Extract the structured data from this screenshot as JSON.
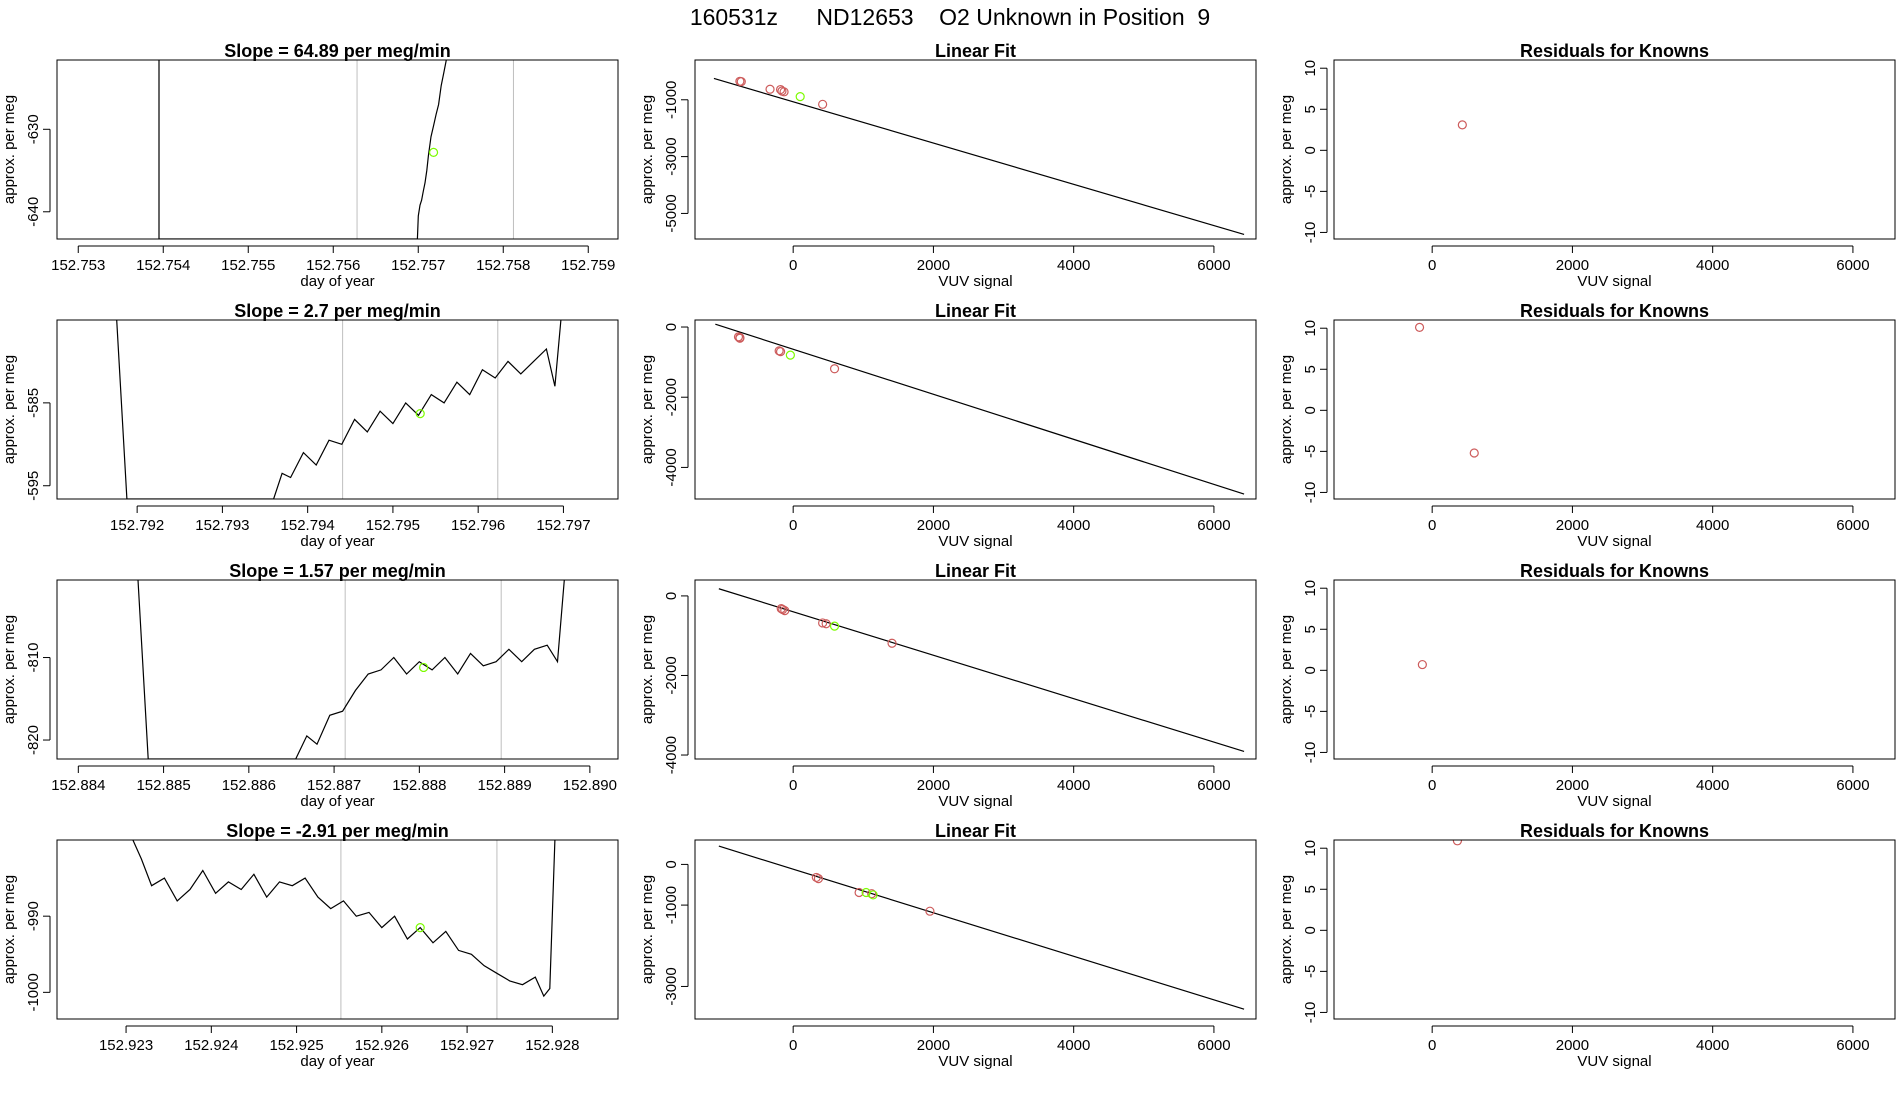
{
  "figure_title": "160531z      ND12653    O2 Unknown in Position  9",
  "chart_data": [
    {
      "type": "line",
      "panel": "time-series",
      "row": 1,
      "title": "Slope =  64.89  per meg/min",
      "xlabel": "day of year",
      "ylabel": "approx. per meg",
      "xlim": [
        152.75275,
        152.75935
      ],
      "ylim": [
        -643.3,
        -621.6
      ],
      "xticks": [
        "152.753",
        "152.754",
        "152.755",
        "152.756",
        "152.757",
        "152.758",
        "152.759"
      ],
      "yticks": [
        "-630",
        "-640"
      ],
      "vlines": [
        152.75628,
        152.75812
      ],
      "x": [
        152.75395,
        152.75395,
        152.75699,
        152.757,
        152.75702,
        152.75704,
        152.75706,
        152.75708,
        152.7571,
        152.75712,
        152.75715,
        152.75718,
        152.75721,
        152.75724,
        152.75727,
        152.7573,
        152.75733
      ],
      "y": [
        -621.6,
        -643.3,
        -643.3,
        -640.5,
        -639.2,
        -638.6,
        -637.5,
        -636.5,
        -635.0,
        -633.2,
        -630.9,
        -629.6,
        -628.2,
        -627.0,
        -624.7,
        -623.2,
        -621.6
      ],
      "point": {
        "x": 152.75718,
        "y": -632.8
      }
    },
    {
      "type": "line",
      "panel": "time-series",
      "row": 2,
      "title": "Slope =  2.7  per meg/min",
      "xlabel": "day of year",
      "ylabel": "approx. per meg",
      "xlim": [
        152.79106,
        152.79764
      ],
      "ylim": [
        -596.6,
        -575.0
      ],
      "xticks": [
        "152.792",
        "152.793",
        "152.794",
        "152.795",
        "152.796",
        "152.797"
      ],
      "yticks": [
        "-585",
        "-595"
      ],
      "vlines": [
        152.79441,
        152.79623
      ],
      "x": [
        152.79176,
        152.79188,
        152.7936,
        152.7937,
        152.7938,
        152.79395,
        152.7941,
        152.79425,
        152.7944,
        152.79455,
        152.7947,
        152.79485,
        152.795,
        152.79515,
        152.7953,
        152.79545,
        152.7956,
        152.79575,
        152.7959,
        152.79605,
        152.7962,
        152.79635,
        152.7965,
        152.79665,
        152.7968,
        152.7969,
        152.79697
      ],
      "y": [
        -575.0,
        -596.6,
        -596.6,
        -593.5,
        -594.0,
        -591.0,
        -592.5,
        -589.5,
        -590.0,
        -587.0,
        -588.5,
        -586.0,
        -587.5,
        -585.0,
        -586.5,
        -584.0,
        -585.0,
        -582.5,
        -584.0,
        -581.0,
        -582.0,
        -580.0,
        -581.5,
        -580.0,
        -578.5,
        -583.0,
        -575.0
      ],
      "point": {
        "x": 152.79532,
        "y": -586.3
      }
    },
    {
      "type": "line",
      "panel": "time-series",
      "row": 3,
      "title": "Slope =  1.57  per meg/min",
      "xlabel": "day of year",
      "ylabel": "approx. per meg",
      "xlim": [
        152.88375,
        152.89033
      ],
      "ylim": [
        -822.3,
        -800.6
      ],
      "xticks": [
        "152.884",
        "152.885",
        "152.886",
        "152.887",
        "152.888",
        "152.889",
        "152.890"
      ],
      "yticks": [
        "-810",
        "-820"
      ],
      "vlines": [
        152.88713,
        152.88896
      ],
      "x": [
        152.8847,
        152.88482,
        152.88655,
        152.88668,
        152.8868,
        152.88695,
        152.8871,
        152.88725,
        152.8874,
        152.88755,
        152.8877,
        152.88785,
        152.888,
        152.88815,
        152.8883,
        152.88845,
        152.8886,
        152.88875,
        152.8889,
        152.88905,
        152.8892,
        152.88935,
        152.8895,
        152.88962,
        152.8897
      ],
      "y": [
        -800.6,
        -822.3,
        -822.3,
        -819.5,
        -820.5,
        -817.0,
        -816.5,
        -814.0,
        -812.0,
        -811.5,
        -810.0,
        -812.0,
        -810.5,
        -811.5,
        -810.0,
        -812.0,
        -809.5,
        -811.0,
        -810.5,
        -809.0,
        -810.5,
        -809.0,
        -808.5,
        -810.5,
        -800.6
      ],
      "point": {
        "x": 152.88805,
        "y": -811.2
      }
    },
    {
      "type": "line",
      "panel": "time-series",
      "row": 4,
      "title": "Slope =  -2.91  per meg/min",
      "xlabel": "day of year",
      "ylabel": "approx. per meg",
      "xlim": [
        152.92219,
        152.92877
      ],
      "ylim": [
        -1003.5,
        -980.0
      ],
      "xticks": [
        "152.923",
        "152.924",
        "152.925",
        "152.926",
        "152.927",
        "152.928"
      ],
      "yticks": [
        "-990",
        "-1000"
      ],
      "vlines": [
        152.92552,
        152.92735
      ],
      "x": [
        152.92308,
        152.92318,
        152.9233,
        152.92345,
        152.9236,
        152.92375,
        152.9239,
        152.92405,
        152.9242,
        152.92435,
        152.9245,
        152.92465,
        152.9248,
        152.92495,
        152.9251,
        152.92525,
        152.9254,
        152.92555,
        152.9257,
        152.92585,
        152.926,
        152.92615,
        152.9263,
        152.92645,
        152.9266,
        152.92675,
        152.9269,
        152.92705,
        152.9272,
        152.92735,
        152.9275,
        152.92765,
        152.9278,
        152.9279,
        152.92797,
        152.92803
      ],
      "y": [
        -980.0,
        -982.5,
        -986.0,
        -985.0,
        -988.0,
        -986.5,
        -984.0,
        -987.0,
        -985.5,
        -986.5,
        -984.5,
        -987.5,
        -985.5,
        -986.0,
        -985.0,
        -987.5,
        -989.0,
        -988.0,
        -990.0,
        -989.5,
        -991.5,
        -990.0,
        -993.0,
        -991.5,
        -993.5,
        -992.0,
        -994.5,
        -995.0,
        -996.5,
        -997.5,
        -998.5,
        -999.0,
        -998.0,
        -1000.5,
        -999.5,
        -980.0
      ],
      "point": {
        "x": 152.92645,
        "y": -991.5
      }
    },
    {
      "type": "scatter",
      "panel": "linear-fit",
      "row": 1,
      "title": "Linear Fit",
      "xlabel": "VUV signal",
      "ylabel": "approx. per meg",
      "xlim": [
        -1400,
        6600
      ],
      "ylim": [
        -5900,
        400
      ],
      "xticks": [
        0,
        2000,
        4000,
        6000
      ],
      "yticks": [
        -1000,
        -3000,
        -5000
      ],
      "line": {
        "x": [
          -1130,
          6430
        ],
        "y": [
          -250,
          -5740
        ]
      },
      "knowns": {
        "x": [
          -760,
          -740,
          -330,
          -180,
          -160,
          -130,
          420
        ],
        "y": [
          -350,
          -360,
          -630,
          -640,
          -690,
          -720,
          -1160
        ]
      },
      "unknown": {
        "x": [
          100
        ],
        "y": [
          -890
        ]
      }
    },
    {
      "type": "scatter",
      "panel": "linear-fit",
      "row": 2,
      "title": "Linear Fit",
      "xlabel": "VUV signal",
      "ylabel": "approx. per meg",
      "xlim": [
        -1400,
        6600
      ],
      "ylim": [
        -4900,
        200
      ],
      "xticks": [
        0,
        2000,
        4000,
        6000
      ],
      "yticks": [
        0,
        -2000,
        -4000
      ],
      "line": {
        "x": [
          -1110,
          6430
        ],
        "y": [
          80,
          -4760
        ]
      },
      "knowns": {
        "x": [
          -780,
          -760,
          -760,
          -200,
          -180,
          590
        ],
        "y": [
          -280,
          -300,
          -320,
          -680,
          -700,
          -1190
        ]
      },
      "unknown": {
        "x": [
          -40
        ],
        "y": [
          -800
        ]
      }
    },
    {
      "type": "scatter",
      "panel": "linear-fit",
      "row": 3,
      "title": "Linear Fit",
      "xlabel": "VUV signal",
      "ylabel": "approx. per meg",
      "xlim": [
        -1400,
        6600
      ],
      "ylim": [
        -4100,
        400
      ],
      "xticks": [
        0,
        2000,
        4000,
        6000
      ],
      "yticks": [
        0,
        -2000,
        -4000
      ],
      "line": {
        "x": [
          -1060,
          6430
        ],
        "y": [
          180,
          -3910
        ]
      },
      "knowns": {
        "x": [
          -170,
          -150,
          -120,
          420,
          470,
          1410
        ],
        "y": [
          -320,
          -340,
          -370,
          -680,
          -700,
          -1190
        ]
      },
      "unknown": {
        "x": [
          590
        ],
        "y": [
          -760
        ]
      }
    },
    {
      "type": "scatter",
      "panel": "linear-fit",
      "row": 4,
      "title": "Linear Fit",
      "xlabel": "VUV signal",
      "ylabel": "approx. per meg",
      "xlim": [
        -1400,
        6600
      ],
      "ylim": [
        -3800,
        600
      ],
      "xticks": [
        0,
        2000,
        4000,
        6000
      ],
      "yticks": [
        0,
        -1000,
        -3000
      ],
      "line": {
        "x": [
          -1060,
          6430
        ],
        "y": [
          450,
          -3560
        ]
      },
      "knowns": {
        "x": [
          330,
          360,
          940,
          1120,
          1950
        ],
        "y": [
          -320,
          -350,
          -690,
          -720,
          -1150
        ]
      },
      "unknown": {
        "x": [
          1040,
          1140
        ],
        "y": [
          -690,
          -750
        ]
      }
    },
    {
      "type": "scatter",
      "panel": "residuals",
      "row": 1,
      "title": "Residuals for Knowns",
      "xlabel": "VUV signal",
      "ylabel": "approx. per meg",
      "xlim": [
        -1400,
        6600
      ],
      "ylim": [
        -10.8,
        11.0
      ],
      "xticks": [
        0,
        2000,
        4000,
        6000
      ],
      "yticks": [
        10,
        5,
        0,
        -5,
        -10
      ],
      "x": [
        430
      ],
      "y": [
        3.1
      ]
    },
    {
      "type": "scatter",
      "panel": "residuals",
      "row": 2,
      "title": "Residuals for Knowns",
      "xlabel": "VUV signal",
      "ylabel": "approx. per meg",
      "xlim": [
        -1400,
        6600
      ],
      "ylim": [
        -10.8,
        11.0
      ],
      "xticks": [
        0,
        2000,
        4000,
        6000
      ],
      "yticks": [
        10,
        5,
        0,
        -5,
        -10
      ],
      "x": [
        -180,
        600
      ],
      "y": [
        10.1,
        -5.2
      ]
    },
    {
      "type": "scatter",
      "panel": "residuals",
      "row": 3,
      "title": "Residuals for Knowns",
      "xlabel": "VUV signal",
      "ylabel": "approx. per meg",
      "xlim": [
        -1400,
        6600
      ],
      "ylim": [
        -10.8,
        11.0
      ],
      "xticks": [
        0,
        2000,
        4000,
        6000
      ],
      "yticks": [
        10,
        5,
        0,
        -5,
        -10
      ],
      "x": [
        -140
      ],
      "y": [
        0.7
      ]
    },
    {
      "type": "scatter",
      "panel": "residuals",
      "row": 4,
      "title": "Residuals for Knowns",
      "xlabel": "VUV signal",
      "ylabel": "approx. per meg",
      "xlim": [
        -1400,
        6600
      ],
      "ylim": [
        -10.8,
        11.0
      ],
      "xticks": [
        0,
        2000,
        4000,
        6000
      ],
      "yticks": [
        10,
        5,
        0,
        -5,
        -10
      ],
      "x": [
        360
      ],
      "y": [
        10.9
      ]
    }
  ],
  "colors": {
    "axis": "#000000",
    "line": "#000000",
    "vline": "#bebebe",
    "known": "#cd5c5c",
    "unknown": "#7cfc00",
    "fitline": "#000000"
  }
}
